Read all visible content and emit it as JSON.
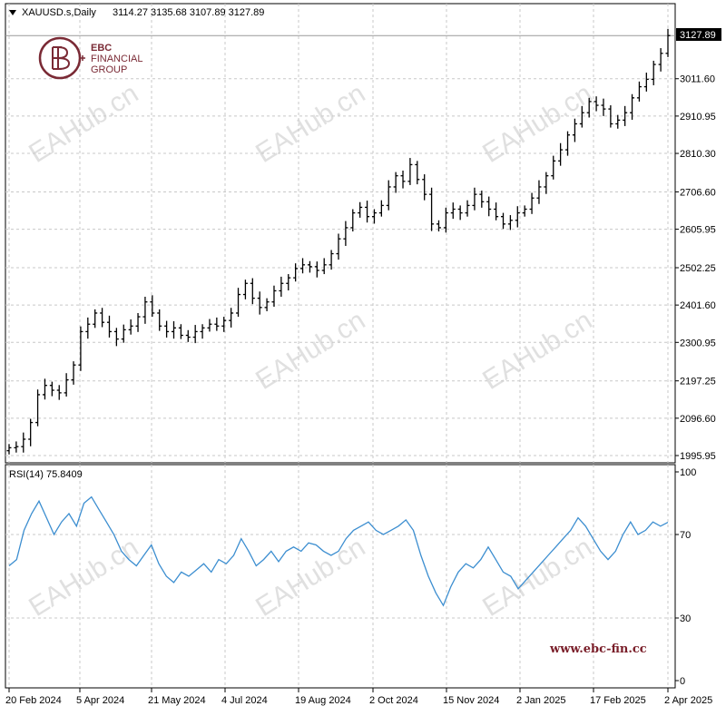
{
  "header": {
    "symbol_label": "XAUUSD.s,Daily",
    "ohlc": "3114.27 3135.68 3107.89 3127.89",
    "dropdown_icon": "triangle-down-icon"
  },
  "brand": {
    "line1": "EBC",
    "line2": "FINANCIAL",
    "line3": "GROUP",
    "logo_icon": "ebc-monogram-icon",
    "color": "#7a2a35"
  },
  "watermark": "EAHub.cn",
  "website": "www.ebc-fin.cc",
  "colors": {
    "grid": "#c8c8c8",
    "rsi_line": "#3c8ed0",
    "bars": "#000000",
    "price_tag_bg": "#000000"
  },
  "chart_data": [
    {
      "type": "ohlc",
      "instrument": "XAUUSD.s",
      "timeframe": "Daily",
      "current_price_label": "3127.89",
      "y_ticks": [
        "3011.60",
        "2910.95",
        "2810.30",
        "2706.60",
        "2605.95",
        "2502.25",
        "2401.60",
        "2300.95",
        "2197.25",
        "2096.60",
        "1995.95"
      ],
      "ylim": [
        1995.95,
        3135.7
      ],
      "x_ticks": [
        "20 Feb 2024",
        "5 Apr 2024",
        "21 May 2024",
        "4 Jul 2024",
        "19 Aug 2024",
        "2 Oct 2024",
        "15 Nov 2024",
        "2 Jan 2025",
        "17 Feb 2025",
        "2 Apr 2025"
      ],
      "closes": [
        2017,
        2020,
        2040,
        2085,
        2160,
        2185,
        2172,
        2165,
        2200,
        2240,
        2330,
        2350,
        2380,
        2355,
        2330,
        2310,
        2335,
        2345,
        2370,
        2410,
        2380,
        2345,
        2330,
        2340,
        2320,
        2315,
        2330,
        2340,
        2350,
        2345,
        2360,
        2380,
        2430,
        2460,
        2420,
        2395,
        2410,
        2440,
        2460,
        2475,
        2500,
        2510,
        2505,
        2495,
        2510,
        2540,
        2580,
        2610,
        2650,
        2665,
        2640,
        2650,
        2670,
        2720,
        2750,
        2735,
        2780,
        2740,
        2700,
        2620,
        2610,
        2650,
        2660,
        2650,
        2670,
        2700,
        2680,
        2660,
        2640,
        2620,
        2630,
        2650,
        2660,
        2690,
        2720,
        2750,
        2790,
        2820,
        2860,
        2890,
        2920,
        2950,
        2940,
        2930,
        2890,
        2900,
        2920,
        2960,
        2990,
        3010,
        3050,
        3080,
        3127.89
      ]
    },
    {
      "type": "line",
      "title": "RSI(14) 75.8409",
      "y_ticks": [
        "100",
        "70",
        "30",
        "0"
      ],
      "ylim": [
        0,
        100
      ],
      "series": [
        {
          "name": "RSI(14)",
          "values": [
            55,
            58,
            72,
            80,
            86,
            78,
            70,
            76,
            80,
            74,
            85,
            88,
            82,
            76,
            70,
            62,
            58,
            55,
            60,
            65,
            56,
            50,
            47,
            52,
            50,
            53,
            56,
            52,
            58,
            56,
            60,
            68,
            62,
            55,
            58,
            62,
            57,
            62,
            64,
            62,
            66,
            65,
            62,
            60,
            62,
            68,
            72,
            74,
            76,
            72,
            70,
            72,
            74,
            77,
            72,
            60,
            50,
            42,
            36,
            45,
            52,
            56,
            54,
            58,
            64,
            58,
            52,
            50,
            44,
            48,
            52,
            56,
            60,
            64,
            68,
            72,
            78,
            74,
            68,
            62,
            58,
            62,
            70,
            76,
            70,
            72,
            76,
            74,
            75.84
          ]
        }
      ]
    }
  ]
}
